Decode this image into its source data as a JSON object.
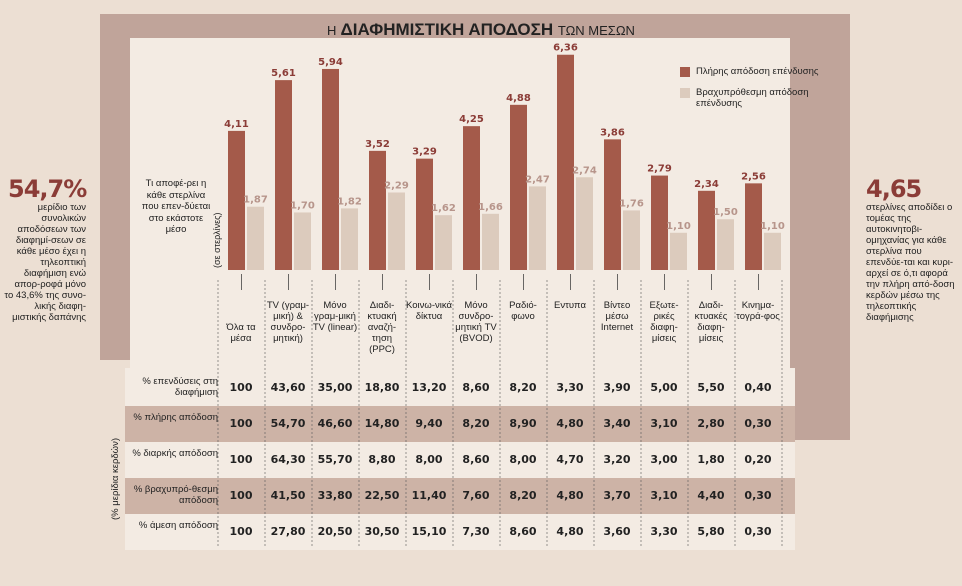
{
  "title_prefix": "Η",
  "title_main": "ΔΙΑΦΗΜΙΣΤΙΚΗ ΑΠΟΔΟΣΗ",
  "title_suffix": "ΤΩΝ ΜΕΣΩΝ",
  "question": "Τι αποφέ-ρει η κάθε στερλίνα που επεν-δύεται στο εκάστοτε μέσο",
  "question_unit": "(σε στερλίνες)",
  "table_unit": "(% μερίδια κερδών)",
  "left_note": {
    "big": "54,7%",
    "text": "μερίδιο των συνολικών αποδόσεων των διαφημί-σεων σε κάθε μέσο έχει η τηλεοπτική διαφήμιση ενώ απορ-ροφά μόνο το 43,6% της συνο-λικής διαφη-μιστικής δαπάνης"
  },
  "right_note": {
    "big": "4,65",
    "text": "στερλίνες αποδίδει ο τομέας της αυτοκινητοβι-ομηχανίας για κάθε στερλίνα που επενδύε-ται και κυρι-αρχεί σε ό,τι αφορά την πλήρη από-δοση κερδών μέσω της τηλεοπτικής διαφήμισης"
  },
  "colors": {
    "full": "#a45a4a",
    "short": "#dccbbd",
    "accent": "#8b3c37",
    "frame": "#b89a8f"
  },
  "chart_data": {
    "type": "bar",
    "categories": [
      "Όλα τα μέσα",
      "TV (γραμ-μική) & συνδρο-μητική)",
      "Μόνο γραμ-μική TV (linear)",
      "Διαδι-κτυακή αναζή-τηση (PPC)",
      "Κοινω-νικά δίκτυα",
      "Μόνο συνδρο-μητική TV (BVOD)",
      "Ραδιό-φωνο",
      "Εντυπα",
      "Βίντεο μέσω Internet",
      "Εξωτε-ρικές διαφη-μίσεις",
      "Διαδι-κτυακές διαφη-μίσεις",
      "Κινημα-τογρά-φος"
    ],
    "series": [
      {
        "name": "Πλήρης απόδοση επένδυσης",
        "values": [
          4.11,
          5.61,
          5.94,
          3.52,
          3.29,
          4.25,
          4.88,
          6.36,
          3.86,
          2.79,
          2.34,
          2.56
        ],
        "labels": [
          "4,11",
          "5,61",
          "5,94",
          "3,52",
          "3,29",
          "4,25",
          "4,88",
          "6,36",
          "3,86",
          "2,79",
          "2,34",
          "2,56"
        ]
      },
      {
        "name": "Βραχυπρόθεσμη απόδοση επένδυσης",
        "values": [
          1.87,
          1.7,
          1.82,
          2.29,
          1.62,
          1.66,
          2.47,
          2.74,
          1.76,
          1.1,
          1.5,
          1.1
        ],
        "labels": [
          "1,87",
          "1,70",
          "1,82",
          "2,29",
          "1,62",
          "1,66",
          "2,47",
          "2,74",
          "1,76",
          "1,10",
          "1,50",
          "1,10"
        ]
      }
    ],
    "ylim": [
      0,
      6.5
    ]
  },
  "table": {
    "rows": [
      {
        "label": "% επενδύσεις στη διαφήμιση",
        "values": [
          "100",
          "43,60",
          "35,00",
          "18,80",
          "13,20",
          "8,60",
          "8,20",
          "3,30",
          "3,90",
          "5,00",
          "5,50",
          "0,40"
        ]
      },
      {
        "label": "% πλήρης απόδοση",
        "values": [
          "100",
          "54,70",
          "46,60",
          "14,80",
          "9,40",
          "8,20",
          "8,90",
          "4,80",
          "3,40",
          "3,10",
          "2,80",
          "0,30"
        ]
      },
      {
        "label": "% διαρκής απόδοση",
        "values": [
          "100",
          "64,30",
          "55,70",
          "8,80",
          "8,00",
          "8,60",
          "8,00",
          "4,70",
          "3,20",
          "3,00",
          "1,80",
          "0,20"
        ]
      },
      {
        "label": "% βραχυπρό-θεσμη απόδοση",
        "values": [
          "100",
          "41,50",
          "33,80",
          "22,50",
          "11,40",
          "7,60",
          "8,20",
          "4,80",
          "3,70",
          "3,10",
          "4,40",
          "0,30"
        ]
      },
      {
        "label": "% άμεση απόδοση",
        "values": [
          "100",
          "27,80",
          "20,50",
          "30,50",
          "15,10",
          "7,30",
          "8,60",
          "4,80",
          "3,60",
          "3,30",
          "5,80",
          "0,30"
        ]
      }
    ]
  }
}
